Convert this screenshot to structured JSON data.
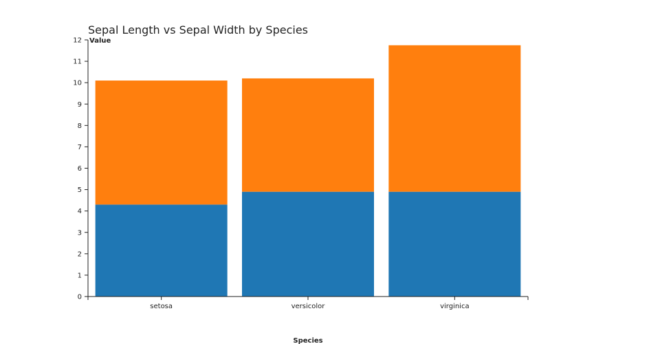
{
  "chart_data": {
    "type": "bar",
    "stacked": true,
    "title": "Sepal Length vs Sepal Width by Species",
    "xlabel": "Species",
    "ylabel": "Value",
    "categories": [
      "setosa",
      "versicolor",
      "virginica"
    ],
    "series": [
      {
        "values": [
          4.3,
          4.9,
          4.9
        ],
        "color": "#1f77b4"
      },
      {
        "values": [
          5.8,
          5.3,
          6.85
        ],
        "color": "#ff7f0e"
      }
    ],
    "ylim": [
      0,
      12
    ],
    "yticks": [
      0,
      1,
      2,
      3,
      4,
      5,
      6,
      7,
      8,
      9,
      10,
      11,
      12
    ],
    "grid": false,
    "legend": "none"
  }
}
